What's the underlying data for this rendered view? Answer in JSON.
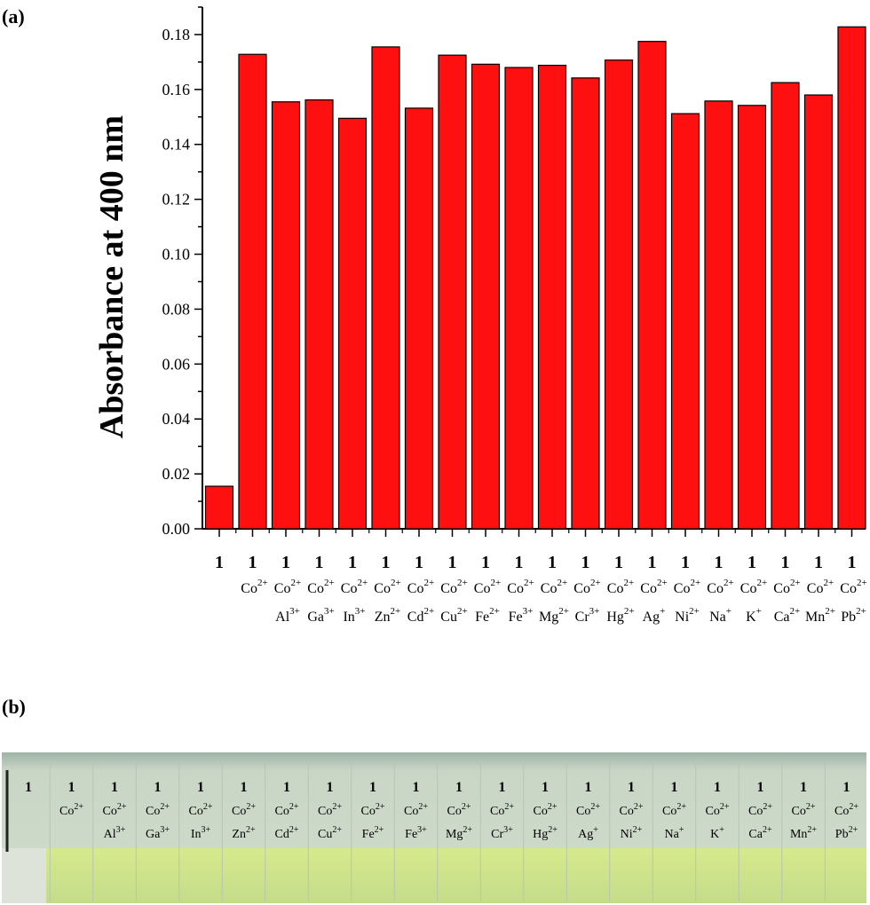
{
  "panel_a_label": "(a)",
  "panel_b_label": "(b)",
  "chart_data": {
    "type": "bar",
    "ylabel": "Absorbance at 400 nm",
    "xlabel": "",
    "ylim": [
      0,
      0.19
    ],
    "yticks": [
      "0.00",
      "0.02",
      "0.04",
      "0.06",
      "0.08",
      "0.10",
      "0.12",
      "0.14",
      "0.16",
      "0.18"
    ],
    "categories": [
      {
        "l1": "1",
        "l2": "",
        "l2sup": "",
        "l3": "",
        "l3sup": ""
      },
      {
        "l1": "1",
        "l2": "Co",
        "l2sup": "2+",
        "l3": "",
        "l3sup": ""
      },
      {
        "l1": "1",
        "l2": "Co",
        "l2sup": "2+",
        "l3": "Al",
        "l3sup": "3+"
      },
      {
        "l1": "1",
        "l2": "Co",
        "l2sup": "2+",
        "l3": "Ga",
        "l3sup": "3+"
      },
      {
        "l1": "1",
        "l2": "Co",
        "l2sup": "2+",
        "l3": "In",
        "l3sup": "3+"
      },
      {
        "l1": "1",
        "l2": "Co",
        "l2sup": "2+",
        "l3": "Zn",
        "l3sup": "2+"
      },
      {
        "l1": "1",
        "l2": "Co",
        "l2sup": "2+",
        "l3": "Cd",
        "l3sup": "2+"
      },
      {
        "l1": "1",
        "l2": "Co",
        "l2sup": "2+",
        "l3": "Cu",
        "l3sup": "2+"
      },
      {
        "l1": "1",
        "l2": "Co",
        "l2sup": "2+",
        "l3": "Fe",
        "l3sup": "2+"
      },
      {
        "l1": "1",
        "l2": "Co",
        "l2sup": "2+",
        "l3": "Fe",
        "l3sup": "3+"
      },
      {
        "l1": "1",
        "l2": "Co",
        "l2sup": "2+",
        "l3": "Mg",
        "l3sup": "2+"
      },
      {
        "l1": "1",
        "l2": "Co",
        "l2sup": "2+",
        "l3": "Cr",
        "l3sup": "3+"
      },
      {
        "l1": "1",
        "l2": "Co",
        "l2sup": "2+",
        "l3": "Hg",
        "l3sup": "2+"
      },
      {
        "l1": "1",
        "l2": "Co",
        "l2sup": "2+",
        "l3": "Ag",
        "l3sup": "+"
      },
      {
        "l1": "1",
        "l2": "Co",
        "l2sup": "2+",
        "l3": "Ni",
        "l3sup": "2+"
      },
      {
        "l1": "1",
        "l2": "Co",
        "l2sup": "2+",
        "l3": "Na",
        "l3sup": "+"
      },
      {
        "l1": "1",
        "l2": "Co",
        "l2sup": "2+",
        "l3": "K",
        "l3sup": "+"
      },
      {
        "l1": "1",
        "l2": "Co",
        "l2sup": "2+",
        "l3": "Ca",
        "l3sup": "2+"
      },
      {
        "l1": "1",
        "l2": "Co",
        "l2sup": "2+",
        "l3": "Mn",
        "l3sup": "2+"
      },
      {
        "l1": "1",
        "l2": "Co",
        "l2sup": "2+",
        "l3": "Pb",
        "l3sup": "2+"
      }
    ],
    "values": [
      0.0155,
      0.1728,
      0.1555,
      0.1562,
      0.1495,
      0.1755,
      0.1532,
      0.1725,
      0.1692,
      0.168,
      0.1688,
      0.1642,
      0.1707,
      0.1775,
      0.1512,
      0.1558,
      0.1542,
      0.1625,
      0.158,
      0.1828
    ],
    "bar_color": "#ff1010",
    "grid": false,
    "legend": "none"
  },
  "photo": {
    "description_colors": {
      "liquid": "#cfe59a",
      "glass": "#c5d3c5"
    },
    "vials": [
      {
        "l1": "1",
        "l2": "",
        "l2sup": "",
        "l3": "",
        "l3sup": ""
      },
      {
        "l1": "1",
        "l2": "Co",
        "l2sup": "2+",
        "l3": "",
        "l3sup": ""
      },
      {
        "l1": "1",
        "l2": "Co",
        "l2sup": "2+",
        "l3": "Al",
        "l3sup": "3+"
      },
      {
        "l1": "1",
        "l2": "Co",
        "l2sup": "2+",
        "l3": "Ga",
        "l3sup": "3+"
      },
      {
        "l1": "1",
        "l2": "Co",
        "l2sup": "2+",
        "l3": "In",
        "l3sup": "3+"
      },
      {
        "l1": "1",
        "l2": "Co",
        "l2sup": "2+",
        "l3": "Zn",
        "l3sup": "2+"
      },
      {
        "l1": "1",
        "l2": "Co",
        "l2sup": "2+",
        "l3": "Cd",
        "l3sup": "2+"
      },
      {
        "l1": "1",
        "l2": "Co",
        "l2sup": "2+",
        "l3": "Cu",
        "l3sup": "2+"
      },
      {
        "l1": "1",
        "l2": "Co",
        "l2sup": "2+",
        "l3": "Fe",
        "l3sup": "2+"
      },
      {
        "l1": "1",
        "l2": "Co",
        "l2sup": "2+",
        "l3": "Fe",
        "l3sup": "3+"
      },
      {
        "l1": "1",
        "l2": "Co",
        "l2sup": "2+",
        "l3": "Mg",
        "l3sup": "2+"
      },
      {
        "l1": "1",
        "l2": "Co",
        "l2sup": "2+",
        "l3": "Cr",
        "l3sup": "3+"
      },
      {
        "l1": "1",
        "l2": "Co",
        "l2sup": "2+",
        "l3": "Hg",
        "l3sup": "2+"
      },
      {
        "l1": "1",
        "l2": "Co",
        "l2sup": "2+",
        "l3": "Ag",
        "l3sup": "+"
      },
      {
        "l1": "1",
        "l2": "Co",
        "l2sup": "2+",
        "l3": "Ni",
        "l3sup": "2+"
      },
      {
        "l1": "1",
        "l2": "Co",
        "l2sup": "2+",
        "l3": "Na",
        "l3sup": "+"
      },
      {
        "l1": "1",
        "l2": "Co",
        "l2sup": "2+",
        "l3": "K",
        "l3sup": "+"
      },
      {
        "l1": "1",
        "l2": "Co",
        "l2sup": "2+",
        "l3": "Ca",
        "l3sup": "2+"
      },
      {
        "l1": "1",
        "l2": "Co",
        "l2sup": "2+",
        "l3": "Mn",
        "l3sup": "2+"
      },
      {
        "l1": "1",
        "l2": "Co",
        "l2sup": "2+",
        "l3": "Pb",
        "l3sup": "2+"
      }
    ]
  }
}
